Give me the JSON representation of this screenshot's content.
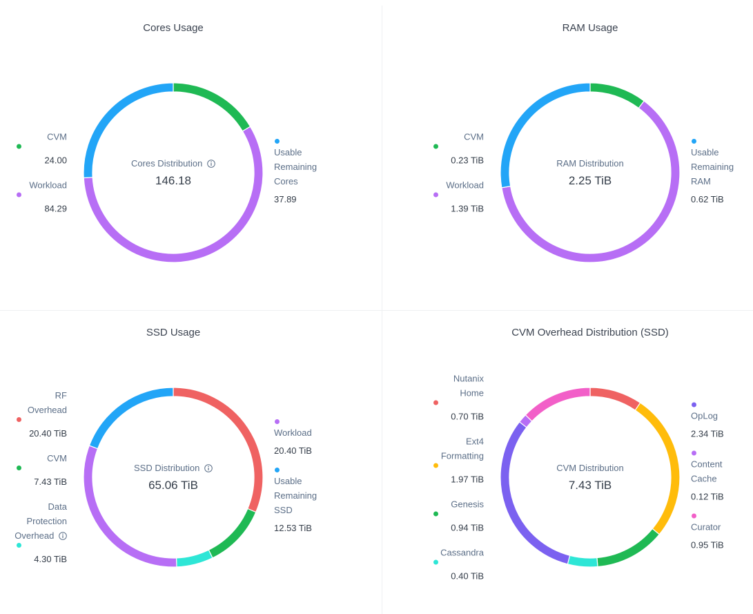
{
  "chart_data": [
    {
      "type": "donut",
      "title": "Cores Usage",
      "center_title": "Cores Distribution",
      "center_info": true,
      "total": 146.18,
      "categories": [
        "CVM",
        "Workload",
        "Usable Remaining Cores"
      ],
      "values": [
        24.0,
        84.29,
        37.89
      ],
      "value_labels": [
        "24.00",
        "84.29",
        "37.89"
      ],
      "colors": [
        "#1fb954",
        "#b76ef5",
        "#22a5f7"
      ]
    },
    {
      "type": "donut",
      "title": "RAM Usage",
      "center_title": "RAM Distribution",
      "center_info": false,
      "total": 2.25,
      "total_label": "2.25 TiB",
      "categories": [
        "CVM",
        "Workload",
        "Usable Remaining RAM"
      ],
      "values": [
        0.23,
        1.39,
        0.62
      ],
      "value_labels": [
        "0.23 TiB",
        "1.39 TiB",
        "0.62 TiB"
      ],
      "colors": [
        "#1fb954",
        "#b76ef5",
        "#22a5f7"
      ]
    },
    {
      "type": "donut",
      "title": "SSD Usage",
      "center_title": "SSD Distribution",
      "center_info": true,
      "total": 65.06,
      "total_label": "65.06 TiB",
      "categories": [
        "RF Overhead",
        "CVM",
        "Data Protection Overhead",
        "Workload",
        "Usable Remaining SSD"
      ],
      "category_info": [
        false,
        false,
        true,
        false,
        false
      ],
      "values": [
        20.4,
        7.43,
        4.3,
        20.4,
        12.53
      ],
      "value_labels": [
        "20.40 TiB",
        "7.43 TiB",
        "4.30 TiB",
        "20.40 TiB",
        "12.53 TiB"
      ],
      "colors": [
        "#ef6262",
        "#1fb954",
        "#2ee6d6",
        "#b76ef5",
        "#22a5f7"
      ]
    },
    {
      "type": "donut",
      "title": "CVM Overhead Distribution (SSD)",
      "center_title": "CVM Distribution",
      "center_info": false,
      "total": 7.43,
      "total_label": "7.43 TiB",
      "categories": [
        "Nutanix Home",
        "Ext4 Formatting",
        "Genesis",
        "Cassandra",
        "OpLog",
        "Content Cache",
        "Curator"
      ],
      "values": [
        0.7,
        1.97,
        0.94,
        0.4,
        2.34,
        0.12,
        0.95
      ],
      "value_labels": [
        "0.70 TiB",
        "1.97 TiB",
        "0.94 TiB",
        "0.40 TiB",
        "2.34 TiB",
        "0.12 TiB",
        "0.95 TiB"
      ],
      "colors": [
        "#ef6262",
        "#ffbc0b",
        "#1fb954",
        "#2ee6d6",
        "#7b61f0",
        "#b76ef5",
        "#f25fc8"
      ]
    }
  ]
}
